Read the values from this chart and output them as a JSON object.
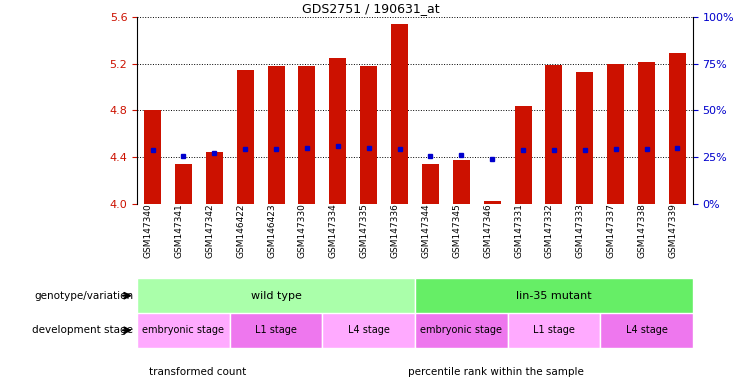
{
  "title": "GDS2751 / 190631_at",
  "samples": [
    "GSM147340",
    "GSM147341",
    "GSM147342",
    "GSM146422",
    "GSM146423",
    "GSM147330",
    "GSM147334",
    "GSM147335",
    "GSM147336",
    "GSM147344",
    "GSM147345",
    "GSM147346",
    "GSM147331",
    "GSM147332",
    "GSM147333",
    "GSM147337",
    "GSM147338",
    "GSM147339"
  ],
  "bar_heights": [
    4.8,
    4.34,
    4.44,
    5.15,
    5.18,
    5.18,
    5.25,
    5.18,
    5.54,
    4.34,
    4.37,
    4.02,
    4.84,
    5.19,
    5.13,
    5.2,
    5.22,
    5.29
  ],
  "blue_markers": [
    4.46,
    4.41,
    4.43,
    4.47,
    4.47,
    4.48,
    4.49,
    4.48,
    4.47,
    4.41,
    4.42,
    4.38,
    4.46,
    4.46,
    4.46,
    4.47,
    4.47,
    4.48
  ],
  "ylim": [
    4.0,
    5.6
  ],
  "yticks_left": [
    4.0,
    4.4,
    4.8,
    5.2,
    5.6
  ],
  "yticks_right": [
    0,
    25,
    50,
    75,
    100
  ],
  "bar_color": "#CC1100",
  "marker_color": "#0000CC",
  "genotype_groups": [
    {
      "label": "wild type",
      "start": 0,
      "end": 9,
      "color": "#AAFFAA"
    },
    {
      "label": "lin-35 mutant",
      "start": 9,
      "end": 18,
      "color": "#66EE66"
    }
  ],
  "dev_stage_groups": [
    {
      "label": "embryonic stage",
      "start": 0,
      "end": 3,
      "color": "#FFAAFF"
    },
    {
      "label": "L1 stage",
      "start": 3,
      "end": 6,
      "color": "#EE77EE"
    },
    {
      "label": "L4 stage",
      "start": 6,
      "end": 9,
      "color": "#FFAAFF"
    },
    {
      "label": "embryonic stage",
      "start": 9,
      "end": 12,
      "color": "#EE77EE"
    },
    {
      "label": "L1 stage",
      "start": 12,
      "end": 15,
      "color": "#FFAAFF"
    },
    {
      "label": "L4 stage",
      "start": 15,
      "end": 18,
      "color": "#EE77EE"
    }
  ],
  "legend_items": [
    {
      "label": "transformed count",
      "color": "#CC1100"
    },
    {
      "label": "percentile rank within the sample",
      "color": "#0000CC"
    }
  ],
  "label_row_geno": "genotype/variation",
  "label_row_dev": "development stage"
}
